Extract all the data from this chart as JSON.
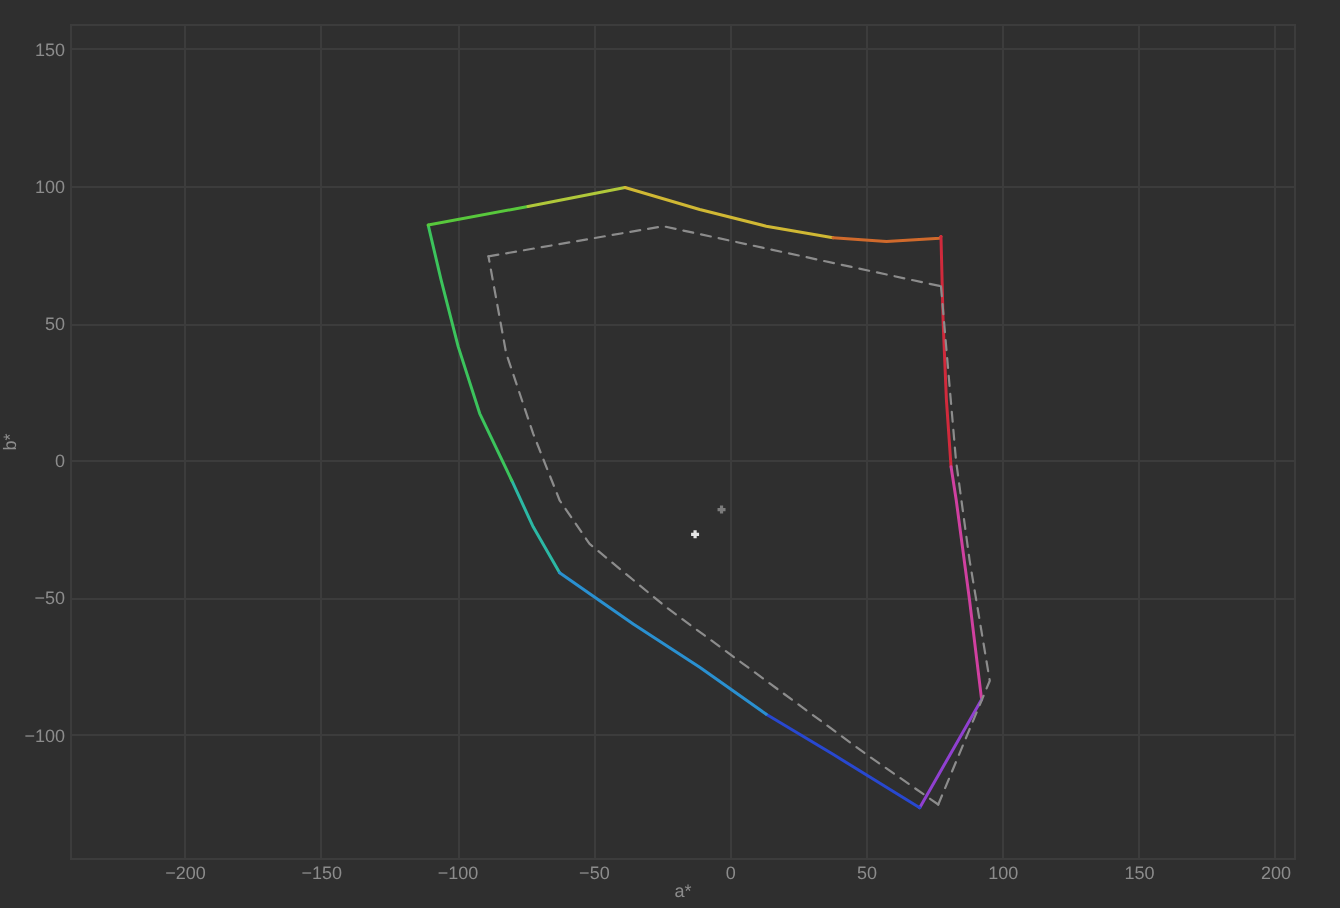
{
  "chart_data": {
    "type": "line",
    "xlabel": "a*",
    "ylabel": "b*",
    "xlim": [
      -242,
      207
    ],
    "ylim": [
      -145,
      159
    ],
    "xticks": [
      -200,
      -150,
      -100,
      -50,
      0,
      50,
      100,
      150,
      200
    ],
    "yticks": [
      -100,
      -50,
      0,
      50,
      100,
      150
    ],
    "grid": true,
    "marker": "none",
    "line_style": "solid",
    "series": [
      {
        "color": "#2cb8a4",
        "x": [
          -62.4,
          -72.1,
          -80
        ],
        "values": [
          -41,
          -24.3,
          -7.3
        ]
      },
      {
        "color": "#3cc45c",
        "x": [
          -80,
          -91.7,
          -99.6,
          -105.9,
          -110.6
        ],
        "values": [
          -7.3,
          17,
          41.4,
          65.8,
          85.7
        ]
      },
      {
        "color": "#58c83c",
        "x": [
          -110.6,
          -74
        ],
        "values": [
          85.7,
          92.5
        ]
      },
      {
        "color": "#b0c83a",
        "x": [
          -74,
          -38.4
        ],
        "values": [
          92.5,
          99.4
        ]
      },
      {
        "color": "#d0b834",
        "x": [
          -38.4,
          -11,
          13.4,
          37.9
        ],
        "values": [
          99.4,
          91.4,
          85.3,
          81.1
        ]
      },
      {
        "color": "#d06a2c",
        "x": [
          37.9,
          57.5,
          77,
          77.5
        ],
        "values": [
          81.1,
          79.7,
          80.9,
          81.5
        ]
      },
      {
        "color": "#d02a3c",
        "x": [
          77.5,
          78.3,
          79.5,
          81.2
        ],
        "values": [
          81.5,
          50,
          21.9,
          -2.4
        ]
      },
      {
        "color": "#d040a0",
        "x": [
          81.2,
          83.1,
          88,
          92.4
        ],
        "values": [
          -2.4,
          -14.6,
          -51.2,
          -87.2
        ]
      },
      {
        "color": "#9040d0",
        "x": [
          92.4,
          69.7
        ],
        "values": [
          -87.2,
          -126.7
        ]
      },
      {
        "color": "#2848d0",
        "x": [
          69.7,
          37.9,
          13.4
        ],
        "values": [
          -126.7,
          -107.2,
          -92.6
        ]
      },
      {
        "color": "#2a90d0",
        "x": [
          13.4,
          -11,
          -35.4,
          -62.4
        ],
        "values": [
          -92.6,
          -75.5,
          -59.7,
          -41
        ]
      },
      {
        "color": "#8c8c8c",
        "line_style": "dashed",
        "x": [
          -88.5,
          -24.4,
          77.5
        ],
        "values": [
          74.3,
          85.3,
          63.4
        ]
      },
      {
        "color": "#8c8c8c",
        "line_style": "dashed",
        "x": [
          77.5,
          83,
          88,
          95.4,
          76.5
        ],
        "values": [
          63.4,
          0,
          -36.5,
          -80.4,
          -125.5
        ]
      },
      {
        "color": "#8c8c8c",
        "line_style": "dashed",
        "x": [
          76.5,
          50.1,
          13.4,
          -23.3,
          -51.4,
          -62.4,
          -72.1,
          -82,
          -88.5
        ],
        "values": [
          -125.5,
          -107.2,
          -80.4,
          -53.6,
          -30.5,
          -14.6,
          9.7,
          39,
          74.3
        ]
      },
      {
        "type": "scatter",
        "marker": "cross",
        "color": "#e6e6e6",
        "x": [
          -12.7
        ],
        "values": [
          -27
        ]
      },
      {
        "type": "scatter",
        "marker": "cross",
        "color": "#7c7c7c",
        "x": [
          -3
        ],
        "values": [
          -18
        ]
      }
    ]
  }
}
